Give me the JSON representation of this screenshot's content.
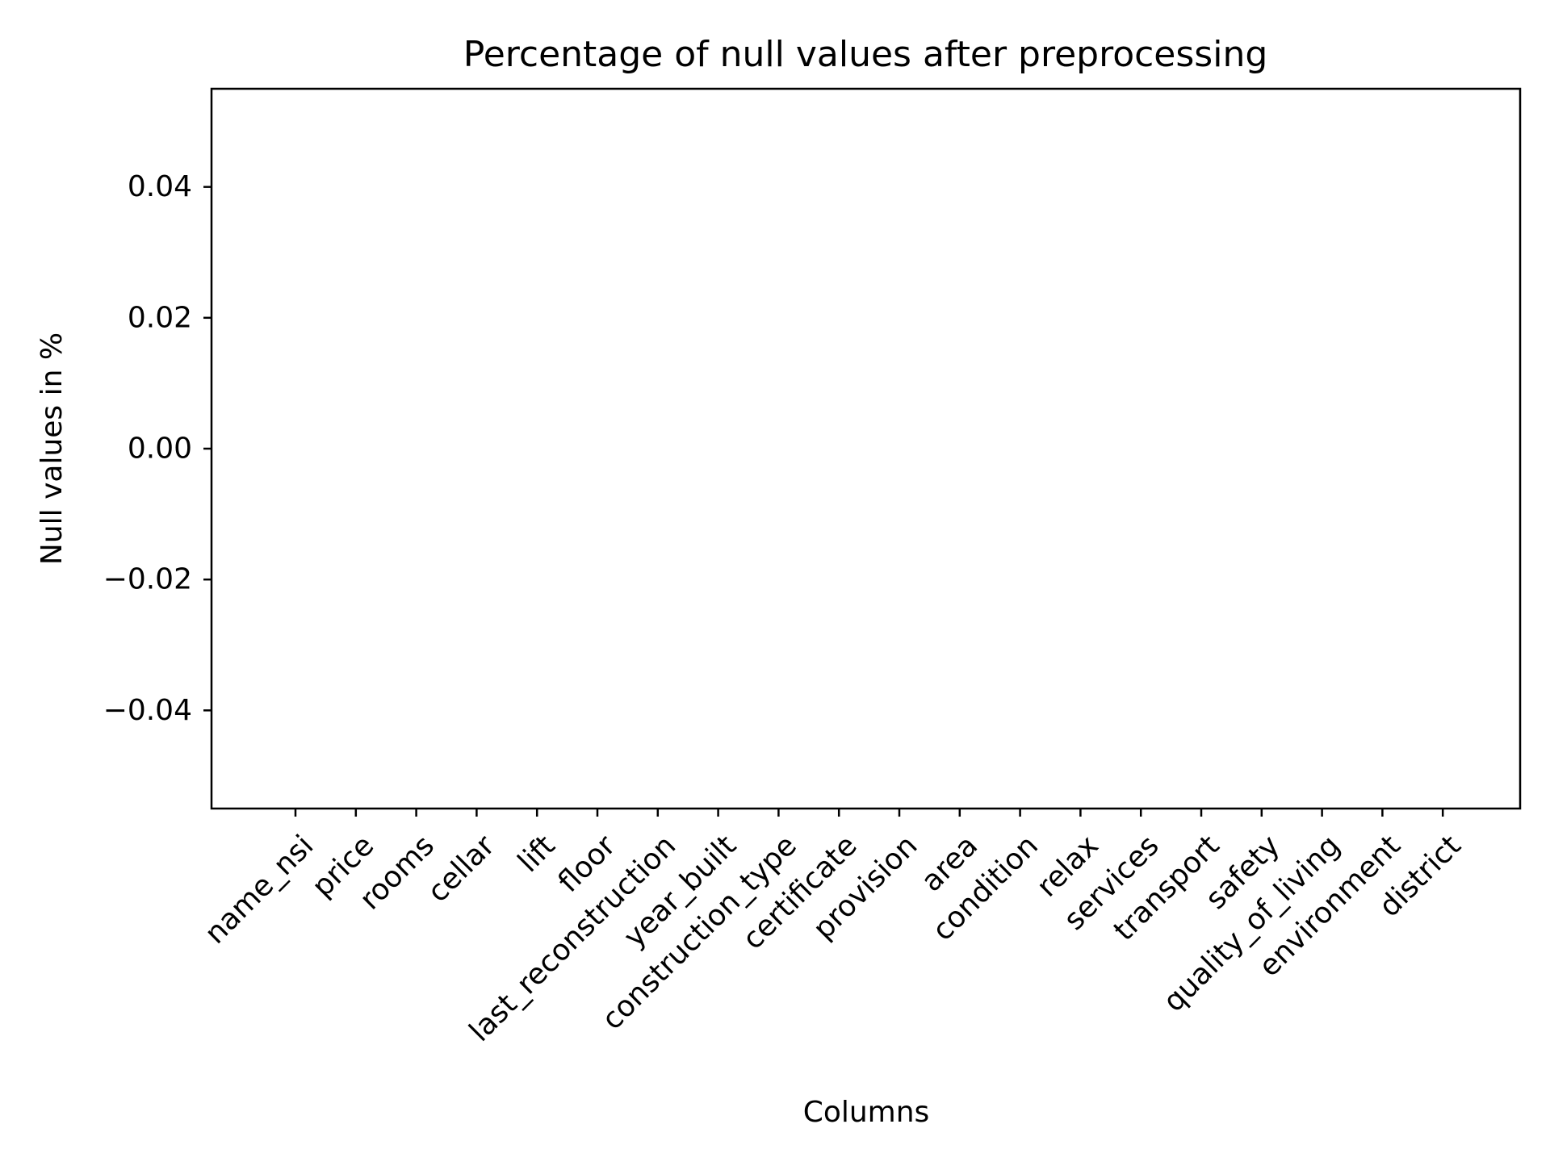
{
  "chart_data": {
    "type": "bar",
    "title": "Percentage of null values after preprocessing",
    "xlabel": "Columns",
    "ylabel": "Null values in %",
    "categories": [
      "name_nsi",
      "price",
      "rooms",
      "cellar",
      "lift",
      "floor",
      "last_reconstruction",
      "year_built",
      "construction_type",
      "certificate",
      "provision",
      "area",
      "condition",
      "relax",
      "services",
      "transport",
      "safety",
      "quality_of_living",
      "environment",
      "district"
    ],
    "values": [
      0,
      0,
      0,
      0,
      0,
      0,
      0,
      0,
      0,
      0,
      0,
      0,
      0,
      0,
      0,
      0,
      0,
      0,
      0,
      0
    ],
    "ylim": [
      -0.055,
      0.055
    ],
    "yticks": [
      -0.04,
      -0.02,
      0.0,
      0.02,
      0.04
    ],
    "ytick_labels": [
      "−0.04",
      "−0.02",
      "0.00",
      "0.02",
      "0.04"
    ],
    "grid": false,
    "legend": "none",
    "bar_color": "#1f77b4"
  }
}
